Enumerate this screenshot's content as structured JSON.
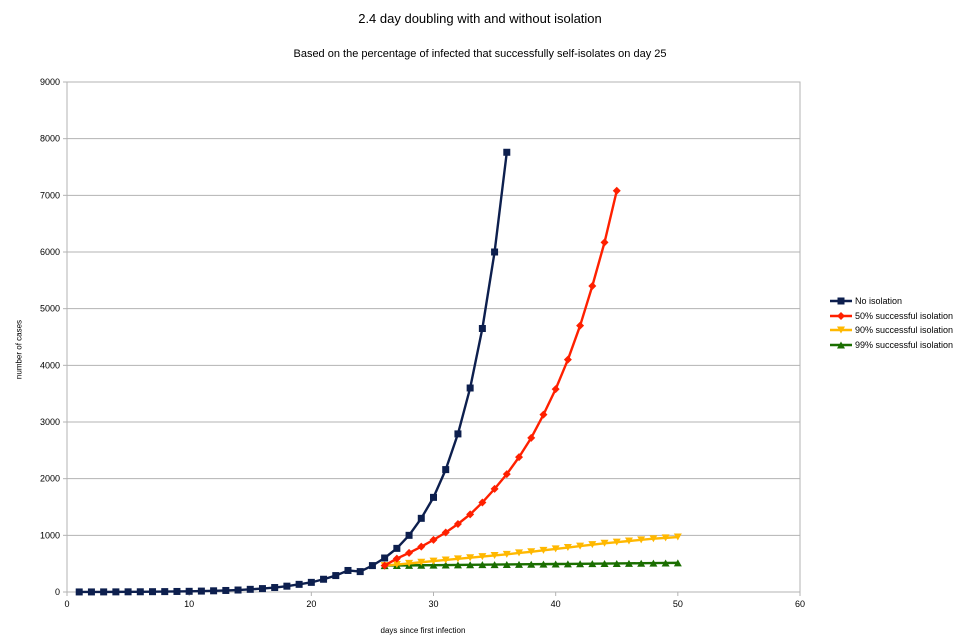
{
  "chart_data": {
    "type": "line",
    "title": "2.4 day doubling with and without isolation",
    "subtitle": "Based on the percentage of infected that successfully self-isolates on day 25",
    "xlabel": "days since first infection",
    "ylabel": "number of cases",
    "xlim": [
      0,
      60
    ],
    "ylim": [
      0,
      9000
    ],
    "xticks": [
      0,
      10,
      20,
      30,
      40,
      50,
      60
    ],
    "yticks": [
      0,
      1000,
      2000,
      3000,
      4000,
      5000,
      6000,
      7000,
      8000,
      9000
    ],
    "grid": "horizontal",
    "legend_position": "right",
    "series": [
      {
        "name": "No isolation",
        "color": "#0d1f4e",
        "marker": "square",
        "x": [
          1,
          2,
          3,
          4,
          5,
          6,
          7,
          8,
          9,
          10,
          11,
          12,
          13,
          14,
          15,
          16,
          17,
          18,
          19,
          20,
          21,
          22,
          23,
          24,
          25,
          26,
          27,
          28,
          29,
          30,
          31,
          32,
          33,
          34,
          35,
          36
        ],
        "y": [
          1,
          1.3,
          1.8,
          2.3,
          3.2,
          4,
          5.6,
          7,
          9.5,
          12,
          16,
          21,
          27,
          35,
          47,
          60,
          79,
          103,
          135,
          170,
          225,
          290,
          380,
          360,
          466,
          600,
          770,
          1000,
          1300,
          1670,
          2160,
          2790,
          3600,
          4650,
          6000,
          7760
        ]
      },
      {
        "name": "50% successful isolation",
        "color": "#ff2000",
        "marker": "diamond",
        "x": [
          26,
          27,
          28,
          29,
          30,
          31,
          32,
          33,
          34,
          35,
          36,
          37,
          38,
          39,
          40,
          41,
          42,
          43,
          44,
          45
        ],
        "y": [
          466,
          590,
          690,
          800,
          920,
          1050,
          1200,
          1370,
          1580,
          1820,
          2080,
          2380,
          2720,
          3130,
          3580,
          4100,
          4700,
          5400,
          6170,
          7080
        ]
      },
      {
        "name": "90% successful isolation",
        "color": "#ffb800",
        "marker": "triangle-down",
        "x": [
          26,
          27,
          28,
          29,
          30,
          31,
          32,
          33,
          34,
          35,
          36,
          37,
          38,
          39,
          40,
          41,
          42,
          43,
          44,
          45,
          46,
          47,
          48,
          49,
          50
        ],
        "y": [
          466,
          485,
          505,
          525,
          545,
          565,
          585,
          605,
          625,
          645,
          665,
          690,
          710,
          735,
          760,
          785,
          810,
          835,
          860,
          880,
          900,
          920,
          940,
          955,
          970
        ]
      },
      {
        "name": "99% successful isolation",
        "color": "#1a6e00",
        "marker": "triangle-up",
        "x": [
          26,
          27,
          28,
          29,
          30,
          31,
          32,
          33,
          34,
          35,
          36,
          37,
          38,
          39,
          40,
          41,
          42,
          43,
          44,
          45,
          46,
          47,
          48,
          49,
          50
        ],
        "y": [
          466,
          468,
          470,
          472,
          474,
          476,
          478,
          480,
          482,
          484,
          486,
          488,
          490,
          492,
          494,
          496,
          498,
          500,
          502,
          504,
          506,
          508,
          510,
          512,
          514
        ]
      }
    ]
  }
}
